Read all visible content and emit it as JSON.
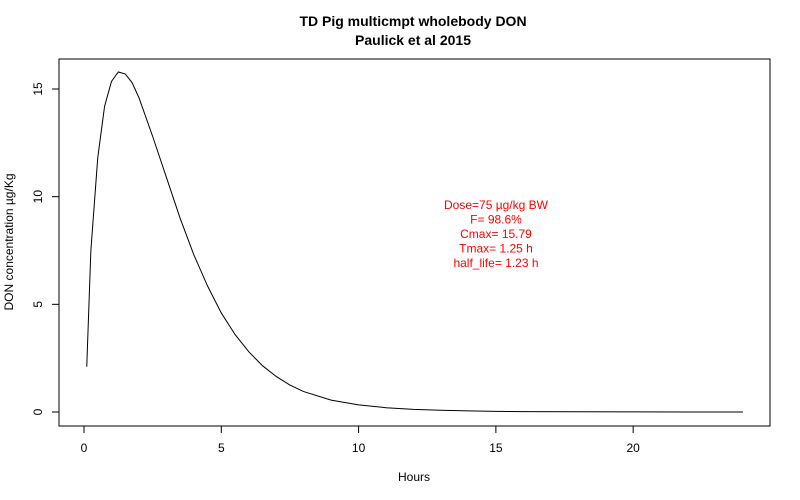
{
  "chart_data": {
    "type": "line",
    "title": "TD Pig multicmpt wholebody  DON",
    "subtitle": "Paulick et al 2015",
    "xlabel": "Hours",
    "ylabel": "DON concentration µg/Kg",
    "xlim": [
      0,
      24
    ],
    "ylim": [
      0,
      16
    ],
    "x_ticks": [
      0,
      5,
      10,
      15,
      20
    ],
    "x_tick_labels": [
      "0",
      "5",
      "10",
      "15",
      "20"
    ],
    "y_ticks": [
      0,
      5,
      10,
      15
    ],
    "y_tick_labels": [
      "0",
      "5",
      "10",
      "15"
    ],
    "grid": false,
    "line_color": "#000000",
    "annotation_color": "#ff0000",
    "annotations": [
      "Dose=75 µg/kg BW",
      "F= 98.6%",
      "Cmax= 15.79",
      "Tmax= 1.25 h",
      "half_life= 1.23 h"
    ],
    "series": [
      {
        "x": [
          0.1,
          0.25,
          0.5,
          0.75,
          1.0,
          1.25,
          1.5,
          1.75,
          2.0,
          2.5,
          3.0,
          3.5,
          4.0,
          4.5,
          5.0,
          5.5,
          6.0,
          6.5,
          7.0,
          7.5,
          8.0,
          9.0,
          10.0,
          11.0,
          12.0,
          13.0,
          14.0,
          15.0,
          16.0,
          18.0,
          20.0,
          22.0,
          24.0
        ],
        "y": [
          2.1,
          7.5,
          11.8,
          14.2,
          15.35,
          15.79,
          15.7,
          15.3,
          14.6,
          12.8,
          10.9,
          9.0,
          7.3,
          5.85,
          4.6,
          3.6,
          2.8,
          2.15,
          1.65,
          1.25,
          0.95,
          0.55,
          0.33,
          0.2,
          0.12,
          0.08,
          0.05,
          0.03,
          0.02,
          0.01,
          0.005,
          0.002,
          0.001
        ]
      }
    ]
  }
}
